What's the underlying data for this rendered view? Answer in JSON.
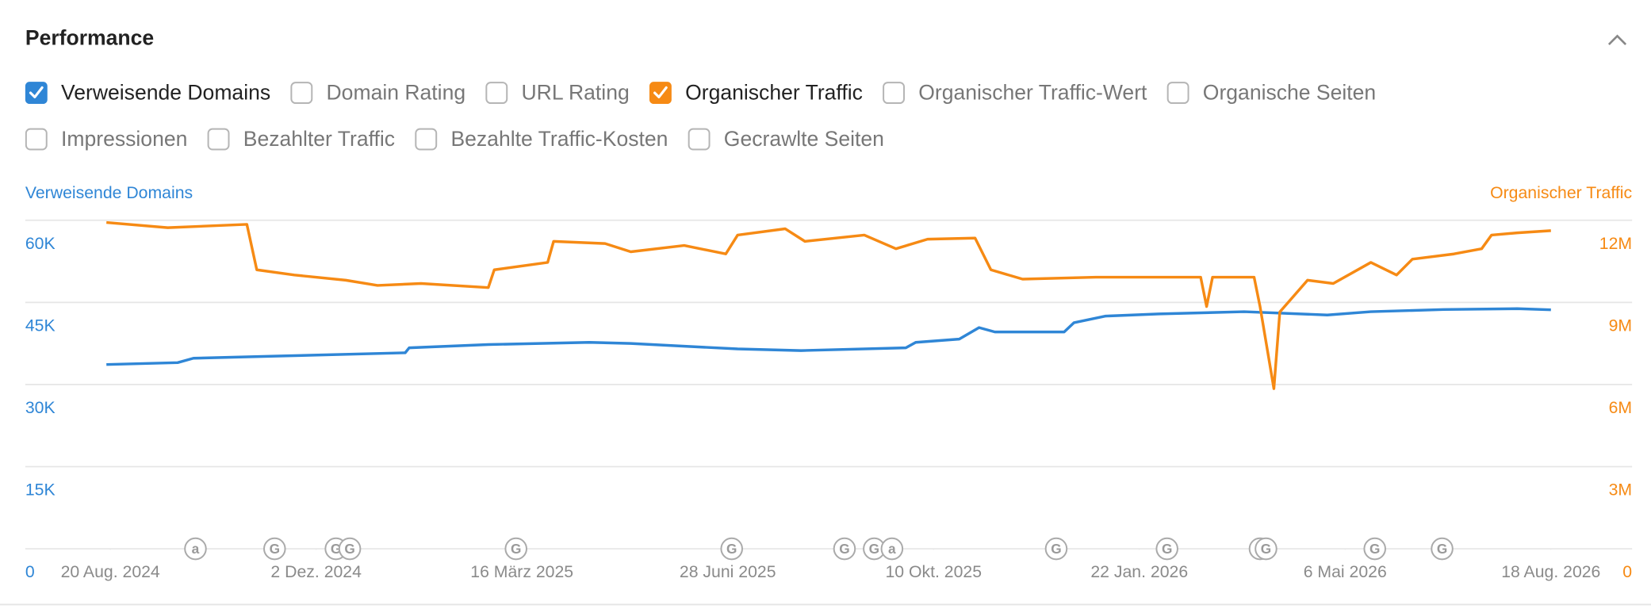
{
  "header": {
    "title": "Performance"
  },
  "filters": [
    [
      {
        "label": "Verweisende Domains",
        "checked": true,
        "color": "#2f86d6"
      },
      {
        "label": "Domain Rating",
        "checked": false
      },
      {
        "label": "URL Rating",
        "checked": false
      },
      {
        "label": "Organischer Traffic",
        "checked": true,
        "color": "#f68a14"
      },
      {
        "label": "Organischer Traffic-Wert",
        "checked": false
      },
      {
        "label": "Organische Seiten",
        "checked": false
      }
    ],
    [
      {
        "label": "Impressionen",
        "checked": false
      },
      {
        "label": "Bezahlter Traffic",
        "checked": false
      },
      {
        "label": "Bezahlte Traffic-Kosten",
        "checked": false
      },
      {
        "label": "Gecrawlte Seiten",
        "checked": false
      }
    ]
  ],
  "chart_data": {
    "type": "line",
    "y_label": "Verweisende Domains",
    "y2_label": "Organischer Traffic",
    "xlim": [
      "2024-07-08",
      "2026-09-28"
    ],
    "xticks": [
      {
        "value": "2024-08-20",
        "label": "20 Aug. 2024"
      },
      {
        "value": "2024-12-02",
        "label": "2 Dez. 2024"
      },
      {
        "value": "2025-03-16",
        "label": "16 März 2025"
      },
      {
        "value": "2025-06-28",
        "label": "28 Juni 2025"
      },
      {
        "value": "2025-10-10",
        "label": "10 Okt. 2025"
      },
      {
        "value": "2026-01-22",
        "label": "22 Jan. 2026"
      },
      {
        "value": "2026-05-06",
        "label": "6 Mai 2026"
      },
      {
        "value": "2026-08-18",
        "label": "18 Aug. 2026"
      }
    ],
    "ylim": [
      0,
      60000
    ],
    "yticks": [
      0,
      {
        "value": 15000,
        "label": "15K"
      },
      {
        "value": 30000,
        "label": "30K"
      },
      {
        "value": 45000,
        "label": "45K"
      },
      {
        "value": 60000,
        "label": "60K"
      }
    ],
    "y2lim": [
      0,
      12000000
    ],
    "y2ticks": [
      0,
      {
        "value": 3000000,
        "label": "3M"
      },
      {
        "value": 6000000,
        "label": "6M"
      },
      {
        "value": 9000000,
        "label": "9M"
      },
      {
        "value": 12000000,
        "label": "12M"
      }
    ],
    "grid": true,
    "series": [
      {
        "name": "Verweisende Domains",
        "color": "#2f86d6",
        "x": [
          "2024-08-18",
          "2024-09-23",
          "2024-10-01",
          "2024-11-13",
          "2025-01-16",
          "2025-01-18",
          "2025-02-27",
          "2025-04-19",
          "2025-05-10",
          "2025-07-03",
          "2025-08-04",
          "2025-09-26",
          "2025-10-01",
          "2025-10-23",
          "2025-11-02",
          "2025-11-10",
          "2025-12-15",
          "2025-12-20",
          "2026-01-05",
          "2026-02-01",
          "2026-03-16",
          "2026-04-27",
          "2026-05-19",
          "2026-06-25",
          "2026-08-01",
          "2026-08-18"
        ],
        "values": [
          33650,
          34000,
          34800,
          35200,
          35800,
          36700,
          37300,
          37700,
          37500,
          36500,
          36200,
          36700,
          37700,
          38300,
          40400,
          39600,
          39600,
          41300,
          42500,
          42900,
          43300,
          42700,
          43300,
          43700,
          43850,
          43650
        ]
      },
      {
        "name": "Organischer Traffic",
        "color": "#f68a14",
        "axis": "y2",
        "x": [
          "2024-08-18",
          "2024-09-18",
          "2024-10-28",
          "2024-11-02",
          "2024-11-21",
          "2024-12-17",
          "2025-01-02",
          "2025-01-24",
          "2025-02-27",
          "2025-03-02",
          "2025-03-29",
          "2025-04-01",
          "2025-04-27",
          "2025-05-10",
          "2025-06-06",
          "2025-06-27",
          "2025-07-03",
          "2025-07-27",
          "2025-08-06",
          "2025-09-05",
          "2025-09-21",
          "2025-10-07",
          "2025-10-31",
          "2025-11-08",
          "2025-11-24",
          "2025-12-31",
          "2026-02-01",
          "2026-02-22",
          "2026-02-25",
          "2026-02-28",
          "2026-03-21",
          "2026-03-24",
          "2026-03-31",
          "2026-04-03",
          "2026-04-17",
          "2026-04-30",
          "2026-05-19",
          "2026-06-01",
          "2026-06-09",
          "2026-06-30",
          "2026-07-14",
          "2026-07-19",
          "2026-08-01",
          "2026-08-18"
        ],
        "values": [
          11920000,
          11730000,
          11850000,
          10190000,
          10000000,
          9810000,
          9620000,
          9690000,
          9540000,
          10190000,
          10460000,
          11230000,
          11150000,
          10850000,
          11080000,
          10770000,
          11460000,
          11690000,
          11230000,
          11460000,
          10960000,
          11310000,
          11350000,
          10190000,
          9850000,
          9920000,
          9920000,
          9920000,
          8850000,
          9920000,
          9920000,
          8850000,
          5850000,
          8650000,
          9810000,
          9690000,
          10460000,
          10000000,
          10580000,
          10770000,
          10960000,
          11460000,
          11540000,
          11620000
        ]
      }
    ],
    "annotations": [
      {
        "x": "2024-10-02",
        "label": "a"
      },
      {
        "x": "2024-11-11",
        "label": "G"
      },
      {
        "x": "2024-12-12",
        "label": "G"
      },
      {
        "x": "2024-12-19",
        "label": "G"
      },
      {
        "x": "2025-03-13",
        "label": "G"
      },
      {
        "x": "2025-06-30",
        "label": "G"
      },
      {
        "x": "2025-08-26",
        "label": "G"
      },
      {
        "x": "2025-09-10",
        "label": "G"
      },
      {
        "x": "2025-09-19",
        "label": "a"
      },
      {
        "x": "2025-12-11",
        "label": "G"
      },
      {
        "x": "2026-02-05",
        "label": "G"
      },
      {
        "x": "2026-03-24",
        "label": "G"
      },
      {
        "x": "2026-03-27",
        "label": "G"
      },
      {
        "x": "2026-05-21",
        "label": "G"
      },
      {
        "x": "2026-06-24",
        "label": "G"
      }
    ]
  }
}
